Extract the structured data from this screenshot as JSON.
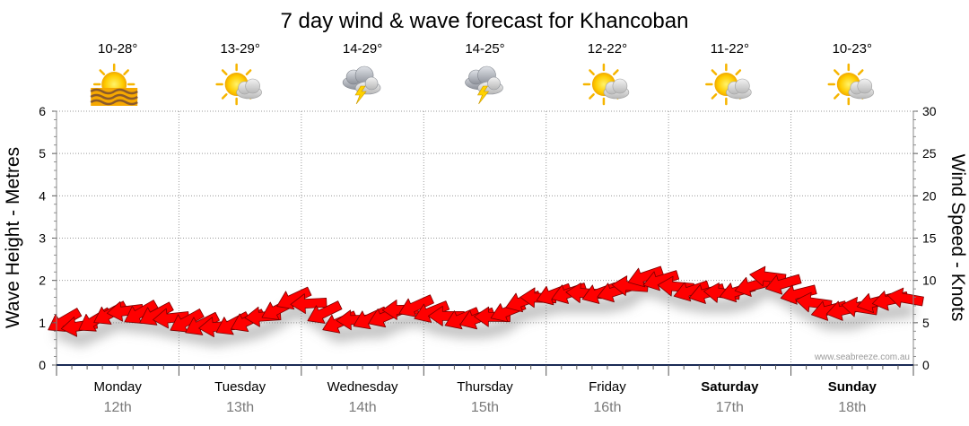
{
  "chart_data": {
    "type": "line",
    "title": "7 day wind & wave forecast for Khancoban",
    "ylabel_left": "Wave Height - Metres",
    "ylabel_right": "Wind Speed - Knots",
    "ylim_left": [
      0,
      6
    ],
    "ylim_right": [
      0,
      30
    ],
    "yticks_left": [
      "0",
      "1",
      "2",
      "3",
      "4",
      "5",
      "6"
    ],
    "yticks_right": [
      "0",
      "5",
      "10",
      "15",
      "20",
      "25",
      "30"
    ],
    "grid": true,
    "watermark": "www.seabreeze.com.au",
    "days": [
      {
        "name": "Monday",
        "date": "12th",
        "temp": "10-28°",
        "icon": "sun-haze-icon",
        "bold": false
      },
      {
        "name": "Tuesday",
        "date": "13th",
        "temp": "13-29°",
        "icon": "sun-cloud-icon",
        "bold": false
      },
      {
        "name": "Wednesday",
        "date": "14th",
        "temp": "14-29°",
        "icon": "storm-icon",
        "bold": false
      },
      {
        "name": "Thursday",
        "date": "15th",
        "temp": "14-25°",
        "icon": "storm-icon",
        "bold": false
      },
      {
        "name": "Friday",
        "date": "16th",
        "temp": "12-22°",
        "icon": "sun-cloud-icon",
        "bold": false
      },
      {
        "name": "Saturday",
        "date": "17th",
        "temp": "11-22°",
        "icon": "sun-cloud-icon",
        "bold": true
      },
      {
        "name": "Sunday",
        "date": "18th",
        "temp": "10-23°",
        "icon": "sun-cloud-icon",
        "bold": true
      }
    ],
    "series": [
      {
        "unit": "knots",
        "axis": "right",
        "color": "#ff0000",
        "x_days": [
          0.0,
          0.2,
          0.35,
          0.5,
          0.65,
          0.8,
          0.95,
          1.1,
          1.3,
          1.5,
          1.65,
          1.8,
          1.95,
          2.1,
          2.3,
          2.5,
          2.65,
          2.8,
          2.95,
          3.1,
          3.3,
          3.5,
          3.65,
          3.8,
          3.95,
          4.1,
          4.3,
          4.5,
          4.65,
          4.8,
          4.95,
          5.1,
          5.3,
          5.5,
          5.65,
          5.8,
          5.95,
          6.1,
          6.3,
          6.5,
          6.7,
          7.0
        ],
        "values": [
          5.5,
          4.5,
          5.5,
          6.5,
          6.2,
          6.0,
          5.5,
          5.0,
          4.5,
          5.0,
          5.5,
          6.5,
          8.0,
          7.0,
          5.0,
          5.5,
          5.5,
          6.5,
          7.0,
          6.0,
          5.5,
          5.5,
          6.0,
          7.5,
          8.0,
          8.5,
          8.5,
          8.5,
          9.0,
          10.5,
          10.0,
          9.0,
          8.5,
          8.5,
          9.0,
          10.5,
          9.5,
          8.0,
          6.5,
          6.5,
          7.5,
          8.0
        ]
      }
    ]
  }
}
